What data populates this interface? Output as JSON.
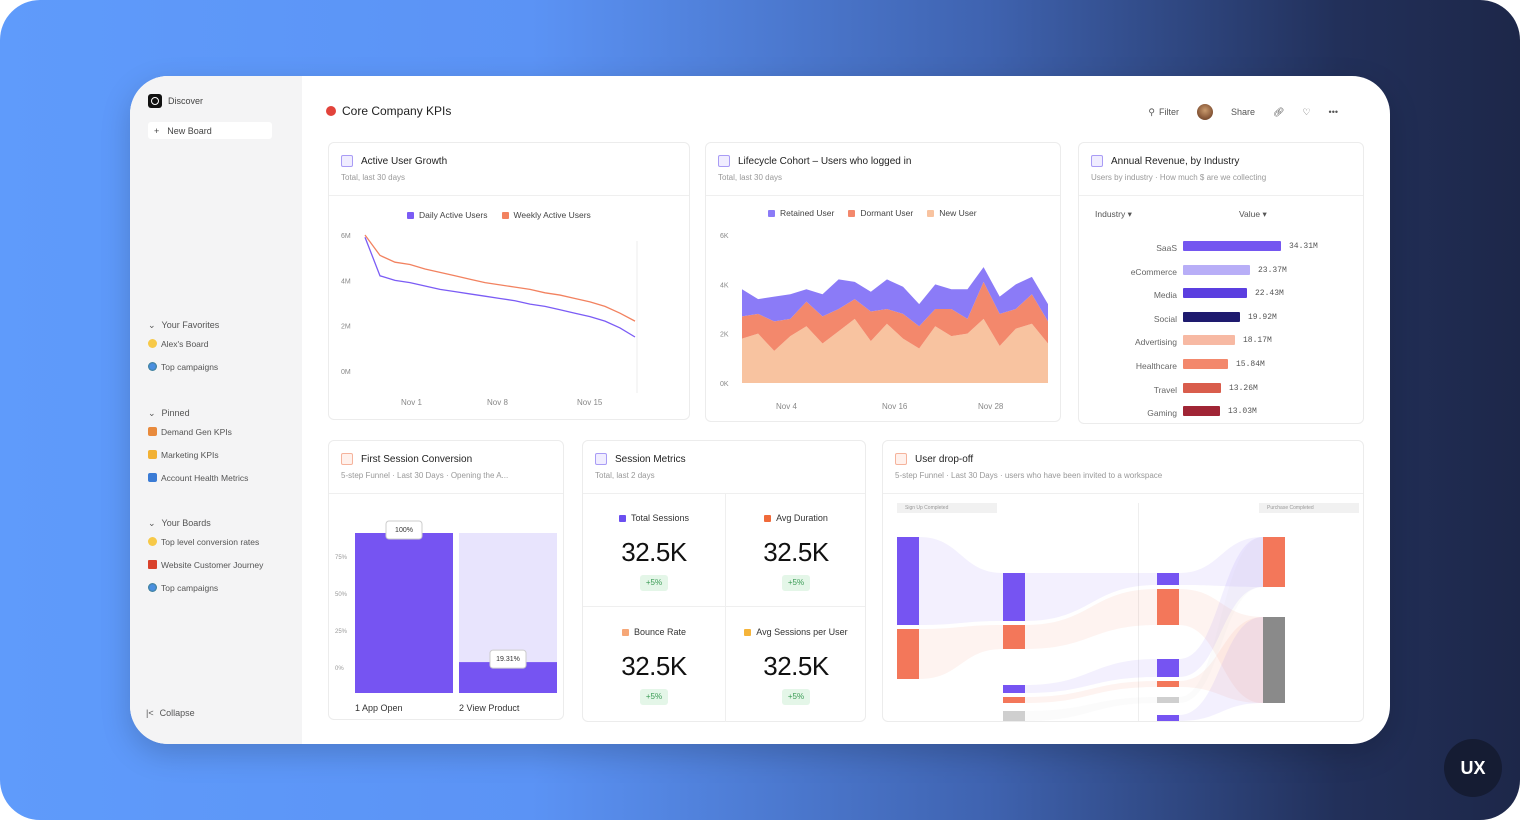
{
  "sidebar": {
    "discover": "Discover",
    "new_board": "New Board",
    "favorites": {
      "title": "Your Favorites",
      "items": [
        {
          "label": "Alex's Board"
        },
        {
          "label": "Top campaigns"
        }
      ]
    },
    "pinned": {
      "title": "Pinned",
      "items": [
        {
          "label": "Demand Gen KPIs"
        },
        {
          "label": "Marketing KPIs"
        },
        {
          "label": "Account Health Metrics"
        }
      ]
    },
    "boards": {
      "title": "Your Boards",
      "items": [
        {
          "label": "Top level conversion rates"
        },
        {
          "label": "Website Customer Journey"
        },
        {
          "label": "Top campaigns"
        }
      ]
    },
    "collapse": "Collapse"
  },
  "header": {
    "title": "Core Company KPIs",
    "filter": "Filter",
    "share": "Share"
  },
  "cards": {
    "growth": {
      "title": "Active User Growth",
      "subtitle": "Total, last 30 days",
      "chart_data": {
        "type": "line",
        "series": [
          {
            "name": "Daily Active Users",
            "color": "#7b5cf5",
            "values": [
              5.9,
              4.2,
              4.0,
              3.9,
              3.75,
              3.6,
              3.5,
              3.4,
              3.3,
              3.2,
              3.1,
              2.95,
              2.85,
              2.7,
              2.55,
              2.4,
              2.2,
              1.9,
              1.5
            ]
          },
          {
            "name": "Weekly Active Users",
            "color": "#f28260",
            "values": [
              6.0,
              5.1,
              4.8,
              4.7,
              4.5,
              4.35,
              4.2,
              4.05,
              3.9,
              3.8,
              3.7,
              3.6,
              3.45,
              3.35,
              3.2,
              3.05,
              2.85,
              2.55,
              2.2
            ]
          }
        ],
        "ylim": [
          0,
          6
        ],
        "yticks": [
          "6M",
          "4M",
          "2M",
          "0M"
        ],
        "xticks": [
          "Nov  1",
          "Nov  8",
          "Nov  15"
        ]
      }
    },
    "cohort": {
      "title": "Lifecycle Cohort – Users who logged in",
      "subtitle": "Total, last 30 days",
      "chart_data": {
        "type": "area",
        "series": [
          {
            "name": "New User",
            "color": "#f8c3a0",
            "values": [
              1.8,
              2.0,
              1.3,
              1.9,
              2.3,
              1.6,
              2.1,
              2.6,
              1.7,
              2.4,
              1.8,
              1.4,
              2.3,
              1.9,
              2.0,
              2.6,
              1.5,
              2.2,
              2.4,
              1.6
            ]
          },
          {
            "name": "Dormant User",
            "color": "#f3886c",
            "values": [
              0.9,
              0.8,
              1.2,
              0.7,
              1.0,
              1.1,
              0.9,
              0.8,
              1.2,
              0.6,
              1.0,
              0.9,
              0.7,
              1.1,
              0.6,
              1.5,
              1.3,
              0.8,
              1.2,
              0.9
            ]
          },
          {
            "name": "Retained User",
            "color": "#8b7bf7",
            "values": [
              1.1,
              0.6,
              1.0,
              1.0,
              0.5,
              0.9,
              1.2,
              0.7,
              0.8,
              1.2,
              1.1,
              0.9,
              1.0,
              0.8,
              1.2,
              0.6,
              0.7,
              1.0,
              0.7,
              0.7
            ]
          }
        ],
        "ylim": [
          0,
          6
        ],
        "yticks": [
          "6K",
          "4K",
          "2K",
          "0K"
        ],
        "xticks": [
          "Nov  4",
          "Nov  16",
          "Nov  28"
        ]
      }
    },
    "revenue": {
      "title": "Annual Revenue, by Industry",
      "subtitle": "Users by industry · How much $ are we collecting",
      "col_industry": "Industry",
      "col_value": "Value",
      "chart_data": {
        "type": "bar",
        "categories": [
          "SaaS",
          "eCommerce",
          "Media",
          "Social",
          "Advertising",
          "Healthcare",
          "Travel",
          "Gaming"
        ],
        "values": [
          34.31,
          23.37,
          22.43,
          19.92,
          18.17,
          15.84,
          13.26,
          13.03
        ],
        "labels": [
          "34.31M",
          "23.37M",
          "22.43M",
          "19.92M",
          "18.17M",
          "15.84M",
          "13.26M",
          "13.03M"
        ],
        "colors": [
          "#7456f0",
          "#b8aef7",
          "#5b3fe0",
          "#1e1a6e",
          "#f7b9a3",
          "#f3886c",
          "#d95d4c",
          "#a02535"
        ]
      }
    },
    "conversion": {
      "title": "First Session Conversion",
      "subtitle": "5-step Funnel · Last 30 Days · Opening the A...",
      "chart_data": {
        "type": "bar",
        "categories": [
          "1 App Open",
          "2 View Product"
        ],
        "values": [
          100,
          19.31
        ],
        "labels": [
          "100%",
          "19.31%"
        ],
        "yticks": [
          "75%",
          "50%",
          "25%",
          "0%"
        ]
      }
    },
    "sessions": {
      "title": "Session Metrics",
      "subtitle": "Total, last 2 days",
      "metrics": [
        {
          "label": "Total Sessions",
          "value": "32.5K",
          "delta": "+5%",
          "color": "#6b4ff0"
        },
        {
          "label": "Avg Duration",
          "value": "32.5K",
          "delta": "+5%",
          "color": "#f06a3a"
        },
        {
          "label": "Bounce Rate",
          "value": "32.5K",
          "delta": "+5%",
          "color": "#f6a777"
        },
        {
          "label": "Avg Sessions per User",
          "value": "32.5K",
          "delta": "+5%",
          "color": "#f5b43a"
        }
      ]
    },
    "dropoff": {
      "title": "User drop-off",
      "subtitle": "5-step Funnel · Last 30 Days · users who have been invited to a workspace",
      "headers": [
        "Sign Up Completed",
        "Purchase Completed"
      ]
    }
  },
  "badge": "UX"
}
